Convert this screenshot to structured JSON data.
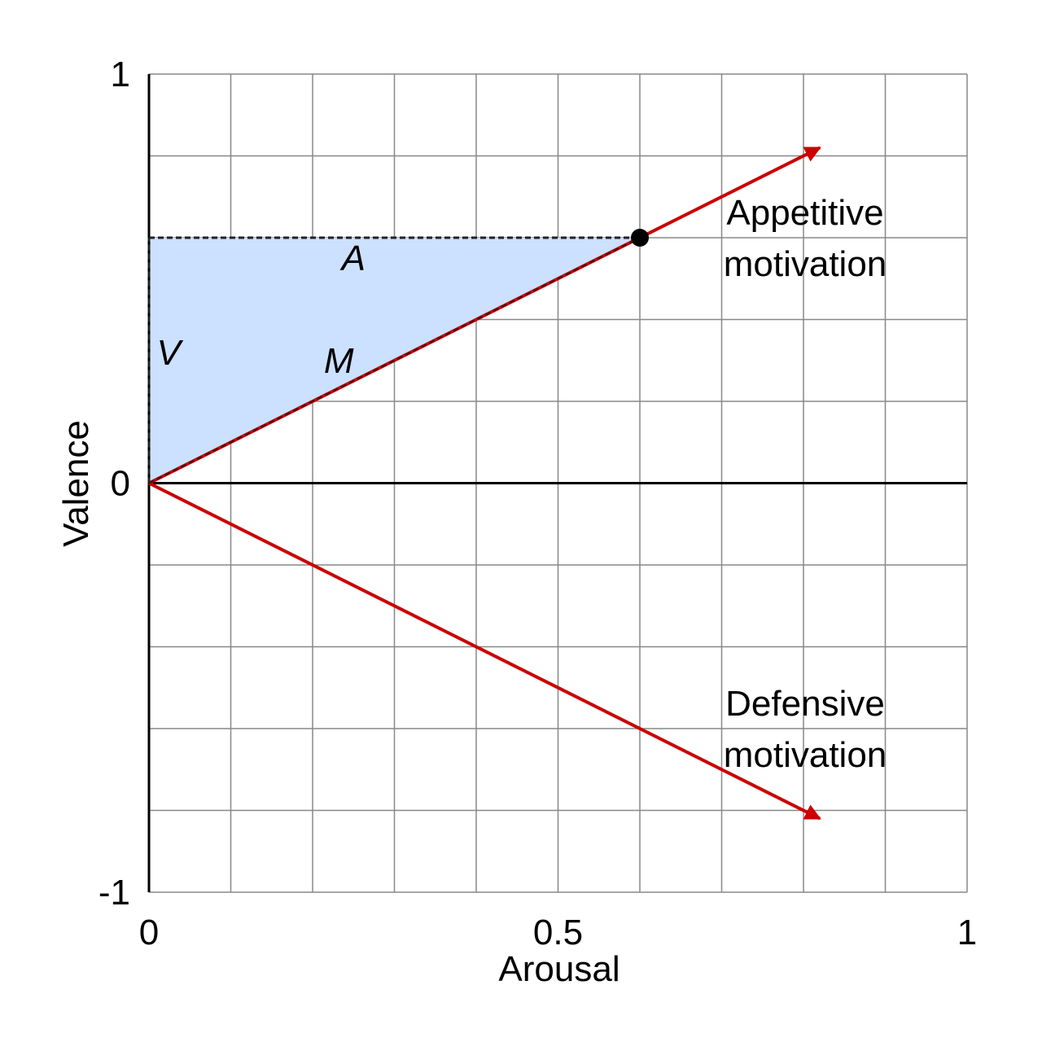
{
  "chart_data": {
    "type": "line",
    "x_label": "Arousal",
    "y_label": "Valence",
    "xlim": [
      0,
      1
    ],
    "ylim": [
      -1,
      1
    ],
    "xticks": [
      0,
      0.5,
      1
    ],
    "yticks": [
      -1,
      0,
      1
    ],
    "grid": {
      "x": [
        0.1,
        0.2,
        0.3,
        0.4,
        0.5,
        0.6,
        0.7,
        0.8,
        0.9,
        1
      ],
      "y": [
        -0.8,
        -0.6,
        -0.4,
        -0.2,
        0.2,
        0.4,
        0.6,
        0.8,
        1,
        -1
      ]
    },
    "series": [
      {
        "name": "Appetitive motivation",
        "color": "#cc0000",
        "x": [
          0,
          0.82
        ],
        "values": [
          0,
          0.82
        ]
      },
      {
        "name": "Defensive motivation",
        "color": "#cc0000",
        "x": [
          0,
          0.82
        ],
        "values": [
          0,
          -0.82
        ]
      }
    ],
    "point": {
      "x": 0.6,
      "y": 0.6,
      "color": "#000000"
    },
    "region_color": "#cce0ff",
    "annotations": [
      "A",
      "V",
      "M"
    ]
  }
}
